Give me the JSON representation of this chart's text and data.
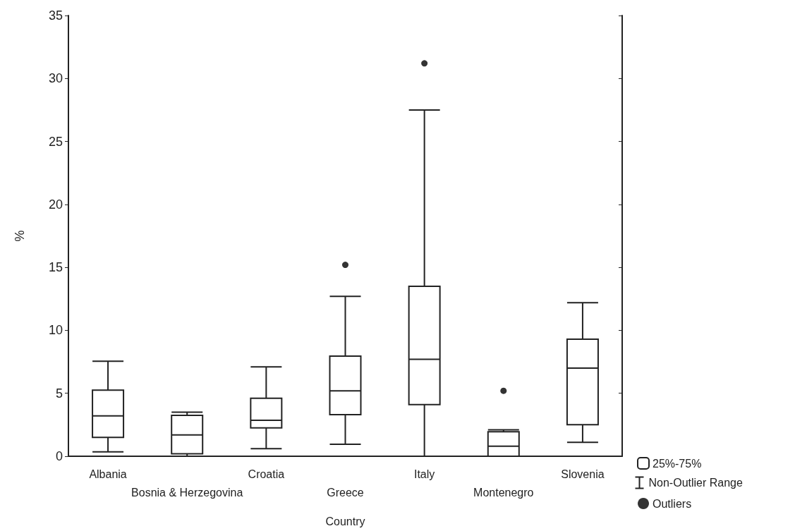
{
  "chart_data": {
    "type": "box",
    "xlabel": "Country",
    "ylabel": "%",
    "categories": [
      "Albania",
      "Bosnia & Herzegovina",
      "Croatia",
      "Greece",
      "Italy",
      "Montenegro",
      "Slovenia"
    ],
    "series": [
      {
        "name": "25%-75%",
        "color": "#222222",
        "boxes": [
          {
            "low": 0.35,
            "q1": 1.5,
            "median": 3.2,
            "q3": 5.25,
            "high": 7.55
          },
          {
            "low": 0,
            "q1": 0.2,
            "median": 1.7,
            "q3": 3.25,
            "high": 3.5
          },
          {
            "low": 0.6,
            "q1": 2.25,
            "median": 2.85,
            "q3": 4.6,
            "high": 7.1
          },
          {
            "low": 0.95,
            "q1": 3.3,
            "median": 5.2,
            "q3": 7.95,
            "high": 12.7
          },
          {
            "low": 0,
            "q1": 4.1,
            "median": 7.7,
            "q3": 13.5,
            "high": 27.5
          },
          {
            "low": 0,
            "q1": 0,
            "median": 0.8,
            "q3": 1.95,
            "high": 2.1
          },
          {
            "low": 1.1,
            "q1": 2.5,
            "median": 7.0,
            "q3": 9.3,
            "high": 12.2
          }
        ]
      },
      {
        "name": "Outliers",
        "type": "scatter",
        "color": "#000000",
        "x": [
          "Greece",
          "Italy",
          "Montenegro"
        ],
        "values": [
          15.2,
          31.2,
          5.2
        ]
      }
    ],
    "annotations": [
      "Non-Outlier Range"
    ],
    "ylim": [
      0,
      35
    ],
    "yticks": [
      0,
      5,
      10,
      15,
      20,
      25,
      30,
      35
    ],
    "grid": false,
    "legend": "bottom right",
    "marker": "circle"
  }
}
